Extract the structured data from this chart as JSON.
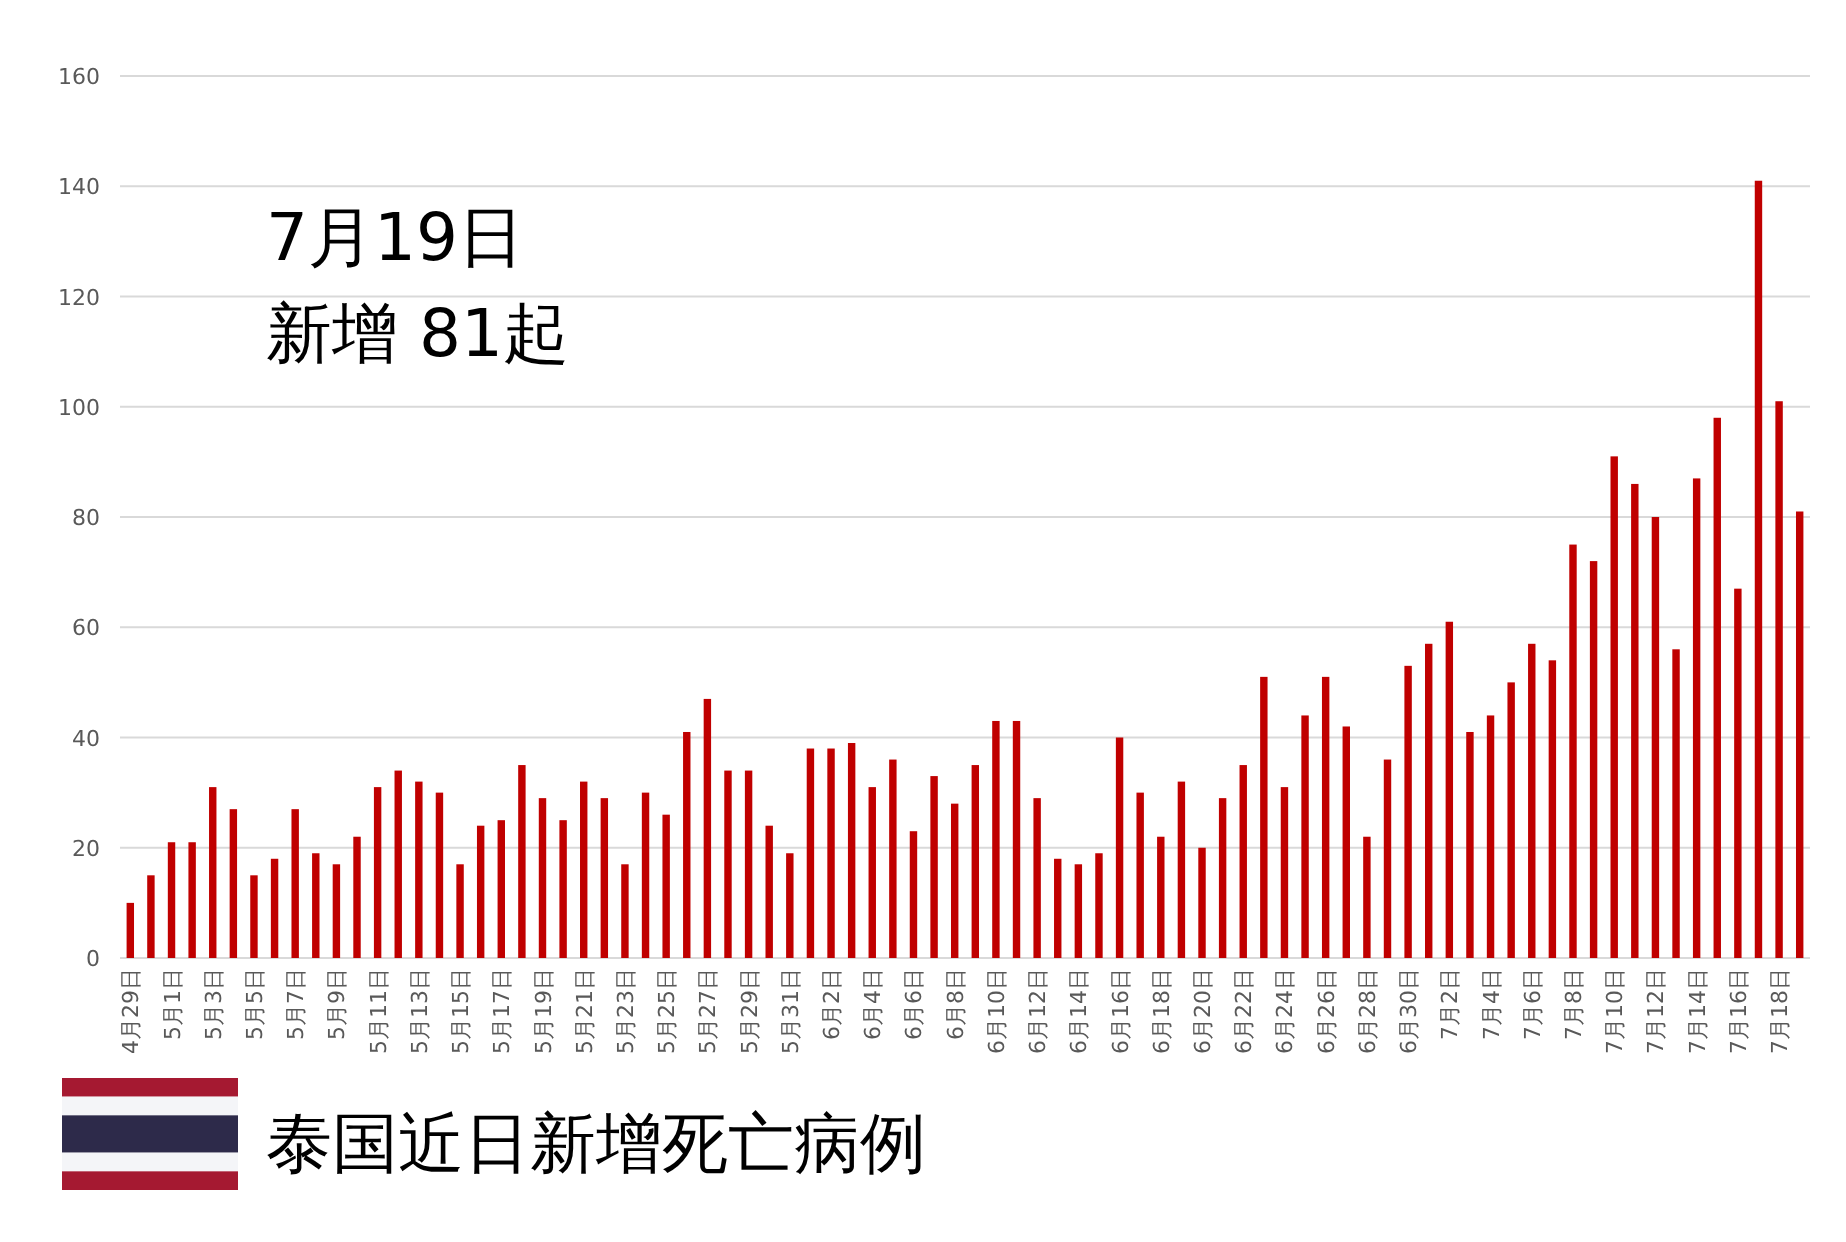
{
  "chart_data": {
    "type": "bar",
    "title": "泰国近日新增死亡病例",
    "annotations": [
      "7月19日",
      "新增 81起"
    ],
    "categories": [
      "4月29日",
      null,
      "5月1日",
      null,
      "5月3日",
      null,
      "5月5日",
      null,
      "5月7日",
      null,
      "5月9日",
      null,
      "5月11日",
      null,
      "5月13日",
      null,
      "5月15日",
      null,
      "5月17日",
      null,
      "5月19日",
      null,
      "5月21日",
      null,
      "5月23日",
      null,
      "5月25日",
      null,
      "5月27日",
      null,
      "5月29日",
      null,
      "5月31日",
      null,
      "6月2日",
      null,
      "6月4日",
      null,
      "6月6日",
      null,
      "6月8日",
      null,
      "6月10日",
      null,
      "6月12日",
      null,
      "6月14日",
      null,
      "6月16日",
      null,
      "6月18日",
      null,
      "6月20日",
      null,
      "6月22日",
      null,
      "6月24日",
      null,
      "6月26日",
      null,
      "6月28日",
      null,
      "6月30日",
      null,
      "7月2日",
      null,
      "7月4日",
      null,
      "7月6日",
      null,
      "7月8日",
      null,
      "7月10日",
      null,
      "7月12日",
      null,
      "7月14日",
      null,
      "7月16日",
      null,
      "7月18日",
      null
    ],
    "values": [
      10,
      15,
      21,
      21,
      31,
      27,
      15,
      18,
      27,
      19,
      17,
      22,
      31,
      34,
      32,
      30,
      17,
      24,
      25,
      35,
      29,
      25,
      32,
      29,
      17,
      30,
      26,
      41,
      47,
      34,
      34,
      24,
      19,
      38,
      38,
      39,
      31,
      36,
      23,
      33,
      28,
      35,
      43,
      43,
      29,
      18,
      17,
      19,
      40,
      30,
      22,
      32,
      20,
      29,
      35,
      51,
      31,
      44,
      51,
      42,
      22,
      36,
      53,
      57,
      61,
      41,
      44,
      50,
      57,
      54,
      75,
      72,
      91,
      86,
      80,
      56,
      87,
      98,
      67,
      141,
      101,
      81
    ],
    "color": "#c00000",
    "ylim": [
      0,
      160
    ],
    "yticks": [
      0,
      20,
      40,
      60,
      80,
      100,
      120,
      140,
      160
    ],
    "grid": "y"
  }
}
